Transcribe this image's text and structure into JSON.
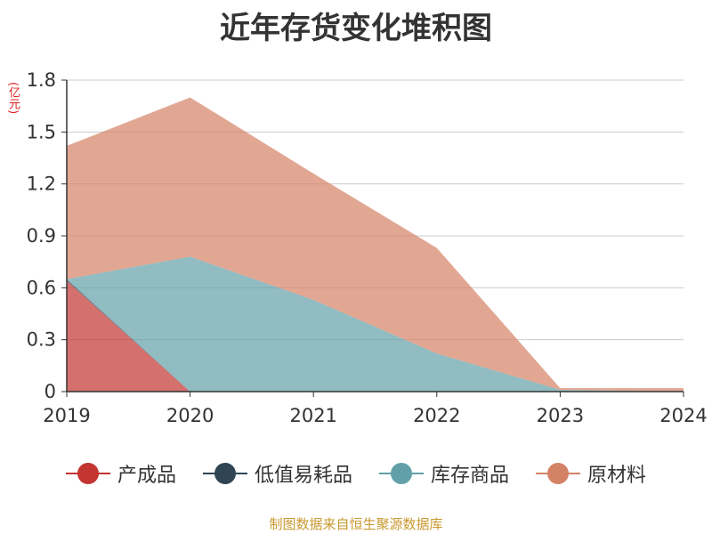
{
  "chart_data": {
    "type": "area",
    "title": "近年存货变化堆积图",
    "y_unit": "(亿元)",
    "x": [
      "2019",
      "2020",
      "2021",
      "2022",
      "2023",
      "2024"
    ],
    "y_ticks": [
      "0",
      "0.3",
      "0.6",
      "0.9",
      "1.2",
      "1.5",
      "1.8"
    ],
    "ylim": [
      0,
      1.8
    ],
    "stacked": true,
    "grid": true,
    "legend_position": "bottom",
    "series": [
      {
        "name": "产成品",
        "color": "#c23531",
        "values": [
          0.64,
          0,
          0,
          0,
          0,
          0
        ]
      },
      {
        "name": "低值易耗品",
        "color": "#2f4554",
        "values": [
          0.01,
          0,
          0,
          0,
          0,
          0
        ]
      },
      {
        "name": "库存商品",
        "color": "#61a0a8",
        "values": [
          0,
          0.78,
          0.53,
          0.22,
          0.01,
          0
        ]
      },
      {
        "name": "原材料",
        "color": "#d48265",
        "values": [
          0.77,
          0.92,
          0.73,
          0.61,
          0.01,
          0.02
        ]
      }
    ]
  },
  "source": "制图数据来自恒生聚源数据库"
}
